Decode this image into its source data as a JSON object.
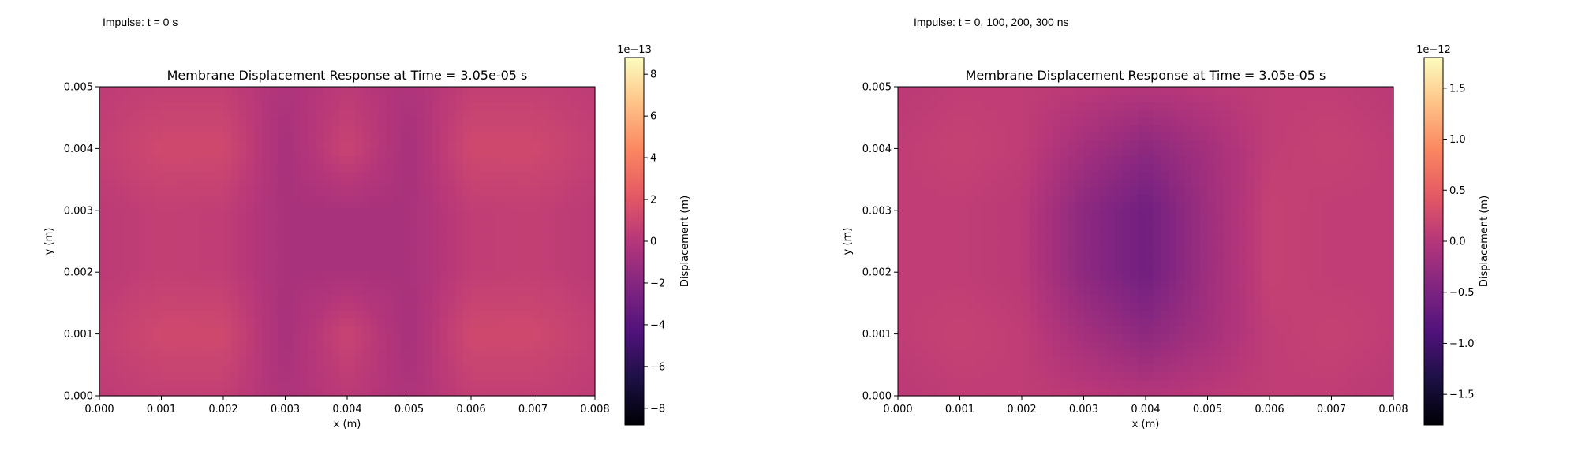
{
  "captions": [
    "Impulse: t = 0 s",
    "Impulse: t = 0, 100, 200, 300 ns"
  ],
  "colors": {
    "colormap": "magma",
    "stops": [
      "#000004",
      "#1c1044",
      "#4f127b",
      "#812581",
      "#b5367a",
      "#e55964",
      "#fb8761",
      "#fec287",
      "#fcfdbf"
    ]
  },
  "chart_data": [
    {
      "type": "heatmap",
      "title": "Membrane Displacement Response at Time = 3.05e-05 s",
      "xlabel": "x (m)",
      "ylabel": "y (m)",
      "xlim": [
        0.0,
        0.008
      ],
      "ylim": [
        0.0,
        0.005
      ],
      "xticks": [
        "0.000",
        "0.001",
        "0.002",
        "0.003",
        "0.004",
        "0.005",
        "0.006",
        "0.007",
        "0.008"
      ],
      "yticks": [
        "0.000",
        "0.001",
        "0.002",
        "0.003",
        "0.004",
        "0.005"
      ],
      "colorbar": {
        "label": "Displacement (m)",
        "offset_text": "1e−13",
        "range": [
          -8.8,
          8.8
        ],
        "ticks": [
          8,
          6,
          4,
          2,
          0,
          -2,
          -4,
          -6,
          -8
        ],
        "tick_labels": [
          "8",
          "6",
          "4",
          "2",
          "0",
          "−2",
          "−4",
          "−6",
          "−8"
        ]
      },
      "field": {
        "description_units": "displacement in units of 1e-13 m",
        "grid_x": [
          0.0,
          0.001,
          0.002,
          0.003,
          0.004,
          0.005,
          0.006,
          0.007,
          0.008
        ],
        "grid_y": [
          0.005,
          0.004,
          0.003,
          0.002,
          0.001,
          0.0
        ],
        "values": [
          [
            0.4,
            0.6,
            0.6,
            -0.3,
            0.3,
            -0.3,
            0.6,
            0.6,
            0.4
          ],
          [
            0.6,
            1.2,
            1.2,
            -0.6,
            0.9,
            -0.6,
            1.2,
            1.2,
            0.6
          ],
          [
            0.3,
            0.6,
            0.5,
            -0.5,
            -0.5,
            -0.5,
            0.5,
            0.6,
            0.3
          ],
          [
            0.3,
            0.6,
            0.5,
            -0.5,
            -0.5,
            -0.5,
            0.5,
            0.6,
            0.3
          ],
          [
            0.6,
            1.2,
            1.2,
            -0.6,
            0.9,
            -0.6,
            1.2,
            1.2,
            0.6
          ],
          [
            0.4,
            0.6,
            0.6,
            -0.3,
            0.3,
            -0.3,
            0.6,
            0.6,
            0.4
          ]
        ]
      }
    },
    {
      "type": "heatmap",
      "title": "Membrane Displacement Response at Time = 3.05e-05 s",
      "xlabel": "x (m)",
      "ylabel": "y (m)",
      "xlim": [
        0.0,
        0.008
      ],
      "ylim": [
        0.0,
        0.005
      ],
      "xticks": [
        "0.000",
        "0.001",
        "0.002",
        "0.003",
        "0.004",
        "0.005",
        "0.006",
        "0.007",
        "0.008"
      ],
      "yticks": [
        "0.000",
        "0.001",
        "0.002",
        "0.003",
        "0.004",
        "0.005"
      ],
      "colorbar": {
        "label": "Displacement (m)",
        "offset_text": "1e−12",
        "range": [
          -1.8,
          1.8
        ],
        "ticks": [
          1.5,
          1.0,
          0.5,
          0.0,
          -0.5,
          -1.0,
          -1.5
        ],
        "tick_labels": [
          "1.5",
          "1.0",
          "0.5",
          "0.0",
          "−0.5",
          "−1.0",
          "−1.5"
        ]
      },
      "field": {
        "description_units": "displacement in units of 1e-12 m",
        "grid_x": [
          0.0,
          0.001,
          0.002,
          0.003,
          0.004,
          0.005,
          0.006,
          0.007,
          0.008
        ],
        "grid_y": [
          0.005,
          0.004,
          0.003,
          0.002,
          0.001,
          0.0
        ],
        "values": [
          [
            0.05,
            0.1,
            0.1,
            0.05,
            0.0,
            0.05,
            0.1,
            0.1,
            0.05
          ],
          [
            0.1,
            0.15,
            0.1,
            -0.15,
            -0.35,
            -0.15,
            0.1,
            0.15,
            0.1
          ],
          [
            0.1,
            0.1,
            0.05,
            -0.35,
            -0.6,
            -0.2,
            0.15,
            0.1,
            0.1
          ],
          [
            0.1,
            0.1,
            0.05,
            -0.35,
            -0.6,
            -0.2,
            0.15,
            0.1,
            0.1
          ],
          [
            0.1,
            0.15,
            0.1,
            -0.15,
            -0.35,
            -0.15,
            0.1,
            0.15,
            0.1
          ],
          [
            0.05,
            0.1,
            0.1,
            0.05,
            0.0,
            0.05,
            0.1,
            0.1,
            0.05
          ]
        ]
      }
    }
  ]
}
